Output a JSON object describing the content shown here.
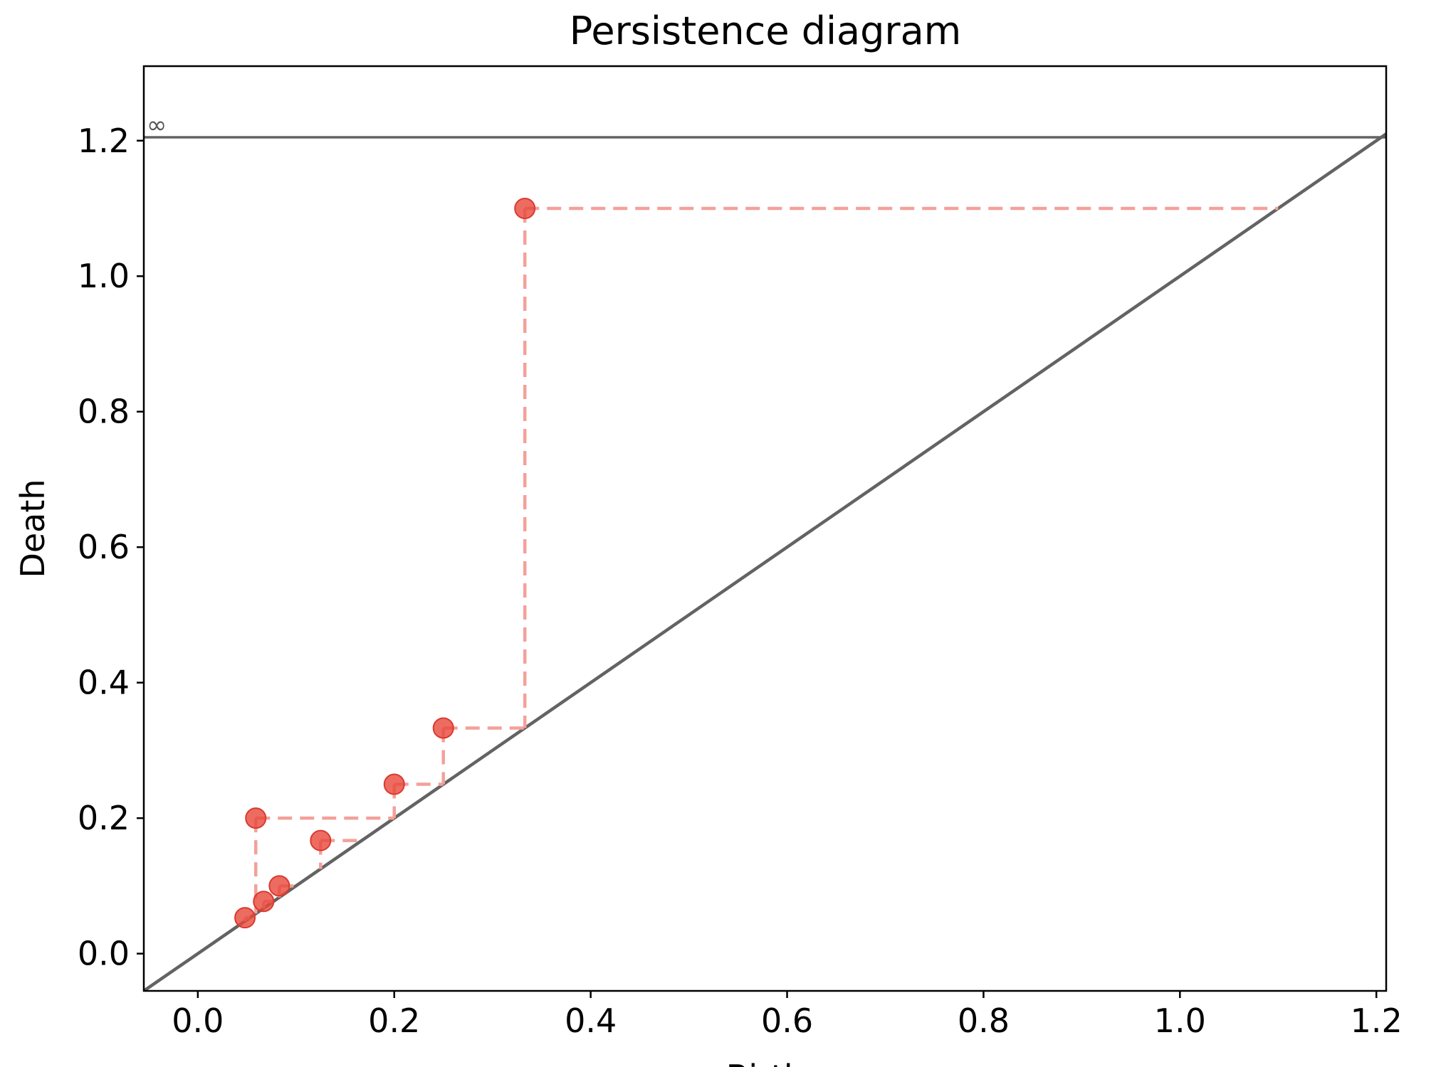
{
  "chart_data": {
    "type": "scatter",
    "title": "Persistence diagram",
    "xlabel": "Birth",
    "ylabel": "Death",
    "xlim": [
      -0.055,
      1.21
    ],
    "ylim": [
      -0.055,
      1.31
    ],
    "xticks": [
      0.0,
      0.2,
      0.4,
      0.6,
      0.8,
      1.0,
      1.2
    ],
    "xtick_labels": [
      "0.0",
      "0.2",
      "0.4",
      "0.6",
      "0.8",
      "1.0",
      "1.2"
    ],
    "yticks": [
      0.0,
      0.2,
      0.4,
      0.6,
      0.8,
      1.0,
      1.2
    ],
    "ytick_labels": [
      "0.0",
      "0.2",
      "0.4",
      "0.6",
      "0.8",
      "1.0",
      "1.2"
    ],
    "infinity_line": {
      "y": 1.205,
      "label": "∞"
    },
    "diagonal": true,
    "grid": false,
    "colors": {
      "points": "#e8473b",
      "dashed_lines": "#f4a09a",
      "reference_lines": "#636363"
    },
    "points": [
      {
        "birth": 0.048,
        "death": 0.053
      },
      {
        "birth": 0.059,
        "death": 0.2
      },
      {
        "birth": 0.067,
        "death": 0.077
      },
      {
        "birth": 0.083,
        "death": 0.1
      },
      {
        "birth": 0.125,
        "death": 0.167
      },
      {
        "birth": 0.2,
        "death": 0.25
      },
      {
        "birth": 0.25,
        "death": 0.333
      },
      {
        "birth": 0.333,
        "death": 1.1
      }
    ]
  }
}
